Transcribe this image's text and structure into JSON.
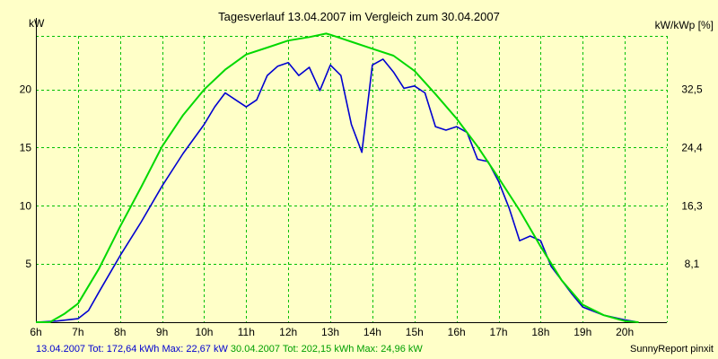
{
  "chart_data": {
    "type": "line",
    "title": "Tagesverlauf 13.04.2007 im Vergleich zum 30.04.2007",
    "ylabel_left": "kW",
    "ylabel_right": "kW/kWp [%]",
    "xlim": [
      6,
      21
    ],
    "ylim": [
      0,
      24.6
    ],
    "x_ticks": [
      6,
      7,
      8,
      9,
      10,
      11,
      12,
      13,
      14,
      15,
      16,
      17,
      18,
      19,
      20
    ],
    "x_tick_labels": [
      "6h",
      "7h",
      "8h",
      "9h",
      "10h",
      "11h",
      "12h",
      "13h",
      "14h",
      "15h",
      "16h",
      "17h",
      "18h",
      "19h",
      "20h"
    ],
    "y_ticks": [
      5,
      10,
      15,
      20
    ],
    "y_tick_labels": [
      "5",
      "10",
      "15",
      "20"
    ],
    "y_right_ticks": [
      5,
      10,
      15,
      20
    ],
    "y_right_tick_labels": [
      "8,1",
      "16,3",
      "24,4",
      "32,5"
    ],
    "grid": true,
    "series": [
      {
        "name": "13.04.2007",
        "color": "#0000d0",
        "x": [
          6.0,
          6.5,
          7.0,
          7.25,
          7.5,
          8.0,
          8.5,
          9.0,
          9.5,
          10.0,
          10.25,
          10.5,
          10.75,
          11.0,
          11.25,
          11.5,
          11.75,
          12.0,
          12.25,
          12.5,
          12.75,
          13.0,
          13.25,
          13.5,
          13.75,
          14.0,
          14.25,
          14.5,
          14.75,
          15.0,
          15.25,
          15.5,
          15.75,
          16.0,
          16.25,
          16.5,
          16.75,
          17.0,
          17.25,
          17.5,
          17.75,
          18.0,
          18.25,
          18.5,
          18.75,
          19.0,
          19.5,
          20.0,
          20.25
        ],
        "values": [
          0.0,
          0.1,
          0.3,
          1.0,
          2.6,
          5.7,
          8.6,
          11.7,
          14.5,
          17.0,
          18.5,
          19.7,
          19.1,
          18.5,
          19.1,
          21.2,
          22.0,
          22.3,
          21.2,
          21.9,
          19.9,
          22.1,
          21.2,
          17.0,
          14.6,
          22.1,
          22.6,
          21.5,
          20.1,
          20.3,
          19.7,
          16.8,
          16.5,
          16.8,
          16.3,
          14.0,
          13.8,
          12.1,
          9.8,
          7.0,
          7.4,
          7.0,
          4.8,
          3.6,
          2.4,
          1.3,
          0.6,
          0.2,
          0.05
        ]
      },
      {
        "name": "30.04.2007",
        "color": "#00d800",
        "x": [
          6.0,
          6.33,
          6.67,
          7.0,
          7.5,
          8.0,
          8.5,
          9.0,
          9.5,
          10.0,
          10.5,
          11.0,
          11.5,
          12.0,
          12.5,
          12.9,
          13.0,
          13.5,
          14.0,
          14.5,
          15.0,
          15.5,
          16.0,
          16.5,
          17.0,
          17.5,
          18.0,
          18.5,
          19.0,
          19.5,
          20.0,
          20.33
        ],
        "values": [
          0.0,
          0.0,
          0.7,
          1.6,
          4.6,
          8.2,
          11.6,
          15.1,
          17.8,
          20.0,
          21.7,
          23.0,
          23.6,
          24.2,
          24.5,
          24.8,
          24.7,
          24.1,
          23.5,
          22.9,
          21.6,
          19.6,
          17.5,
          15.1,
          12.4,
          9.6,
          6.5,
          3.6,
          1.5,
          0.6,
          0.1,
          0.0
        ]
      }
    ]
  },
  "footer": {
    "s1_label": "13.04.2007",
    "s1_tot": "Tot: 172,64 kWh",
    "s1_max": "Max: 22,67 kW",
    "s2_label": "30.04.2007",
    "s2_tot": "Tot: 202,15 kWh",
    "s2_max": "Max: 24,96 kW",
    "credit": "SunnyReport pinxit"
  }
}
